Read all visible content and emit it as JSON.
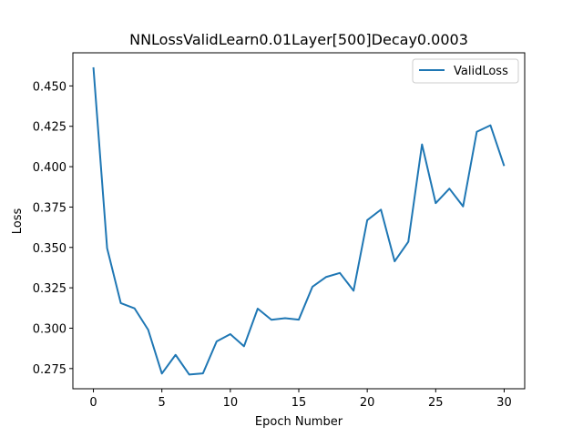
{
  "chart_data": {
    "type": "line",
    "title": "NNLossValidLearn0.01Layer[500]Decay0.0003",
    "xlabel": "Epoch Number",
    "ylabel": "Loss",
    "xlim": [
      -1.5,
      31.5
    ],
    "ylim": [
      0.2625,
      0.4705
    ],
    "xticks": [
      0,
      5,
      10,
      15,
      20,
      25,
      30
    ],
    "xtick_labels": [
      "0",
      "5",
      "10",
      "15",
      "20",
      "25",
      "30"
    ],
    "yticks": [
      0.275,
      0.3,
      0.325,
      0.35,
      0.375,
      0.4,
      0.425,
      0.45
    ],
    "ytick_labels": [
      "0.275",
      "0.300",
      "0.325",
      "0.350",
      "0.375",
      "0.400",
      "0.425",
      "0.450"
    ],
    "grid": false,
    "legend_position": "top-right",
    "series": [
      {
        "name": "ValidLoss",
        "color": "#1f77b4",
        "x": [
          0,
          1,
          2,
          3,
          4,
          5,
          6,
          7,
          8,
          9,
          10,
          11,
          12,
          13,
          14,
          15,
          16,
          17,
          18,
          19,
          20,
          21,
          22,
          23,
          24,
          25,
          26,
          27,
          28,
          29,
          30
        ],
        "values": [
          0.4615,
          0.3495,
          0.3155,
          0.3123,
          0.299,
          0.2719,
          0.2835,
          0.2713,
          0.272,
          0.2918,
          0.2963,
          0.2888,
          0.3121,
          0.3052,
          0.3062,
          0.3053,
          0.3257,
          0.3317,
          0.3342,
          0.3232,
          0.3669,
          0.3734,
          0.3414,
          0.3535,
          0.4138,
          0.3774,
          0.3864,
          0.3754,
          0.4216,
          0.4256,
          0.4004
        ]
      }
    ]
  }
}
